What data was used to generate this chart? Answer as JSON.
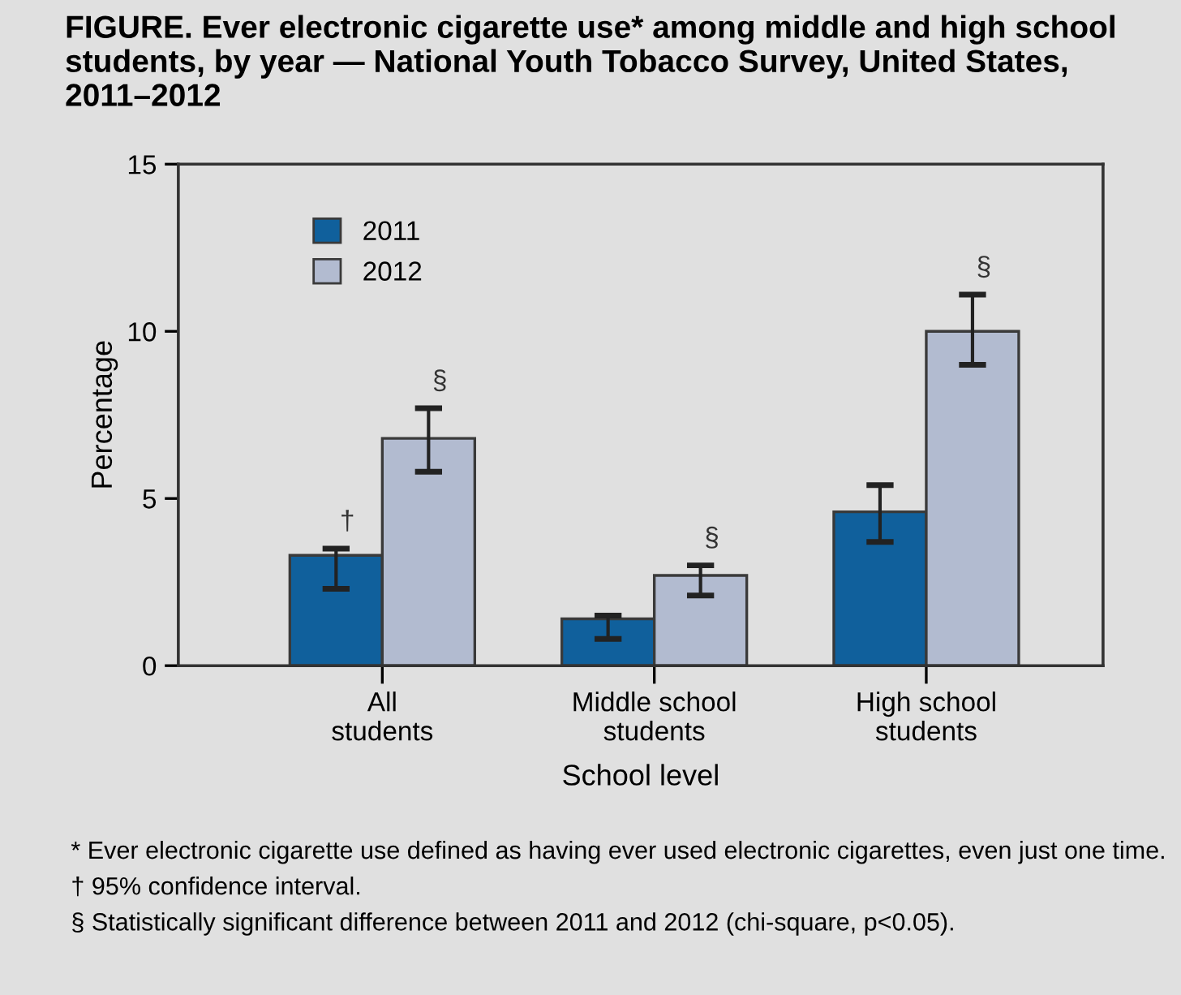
{
  "chart_data": {
    "type": "bar",
    "title": "FIGURE. Ever electronic cigarette use* among middle and high school students, by year — National Youth Tobacco Survey, United States, 2011–2012",
    "xlabel": "School level",
    "ylabel": "Percentage",
    "categories": [
      "All\nstudents",
      "Middle school\nstudents",
      "High school\nstudents"
    ],
    "series": [
      {
        "name": "2011",
        "color": "#10609c",
        "values": [
          3.3,
          1.4,
          4.6
        ],
        "value_labels": [
          "†",
          null,
          null
        ],
        "errors": [
          [
            2.3,
            3.5
          ],
          [
            0.8,
            1.5
          ],
          [
            3.7,
            5.4
          ]
        ]
      },
      {
        "name": "2012",
        "color": "#b2bbd0",
        "values": [
          6.8,
          2.7,
          10.0
        ],
        "value_labels": [
          "§",
          "§",
          "§"
        ],
        "errors": [
          [
            5.8,
            7.7
          ],
          [
            2.1,
            3.0
          ],
          [
            9.0,
            11.1
          ]
        ]
      }
    ],
    "ylim": [
      0,
      15
    ],
    "yticks": [
      0,
      5,
      10,
      15
    ],
    "grid": false,
    "legend": "top left",
    "annotations": [
      "* Ever electronic cigarette use defined as having ever used electronic cigarettes, even just one time.",
      "† 95% confidence interval.",
      "§ Statistically significant difference between 2011 and 2012 (chi-square, p<0.05)."
    ]
  }
}
